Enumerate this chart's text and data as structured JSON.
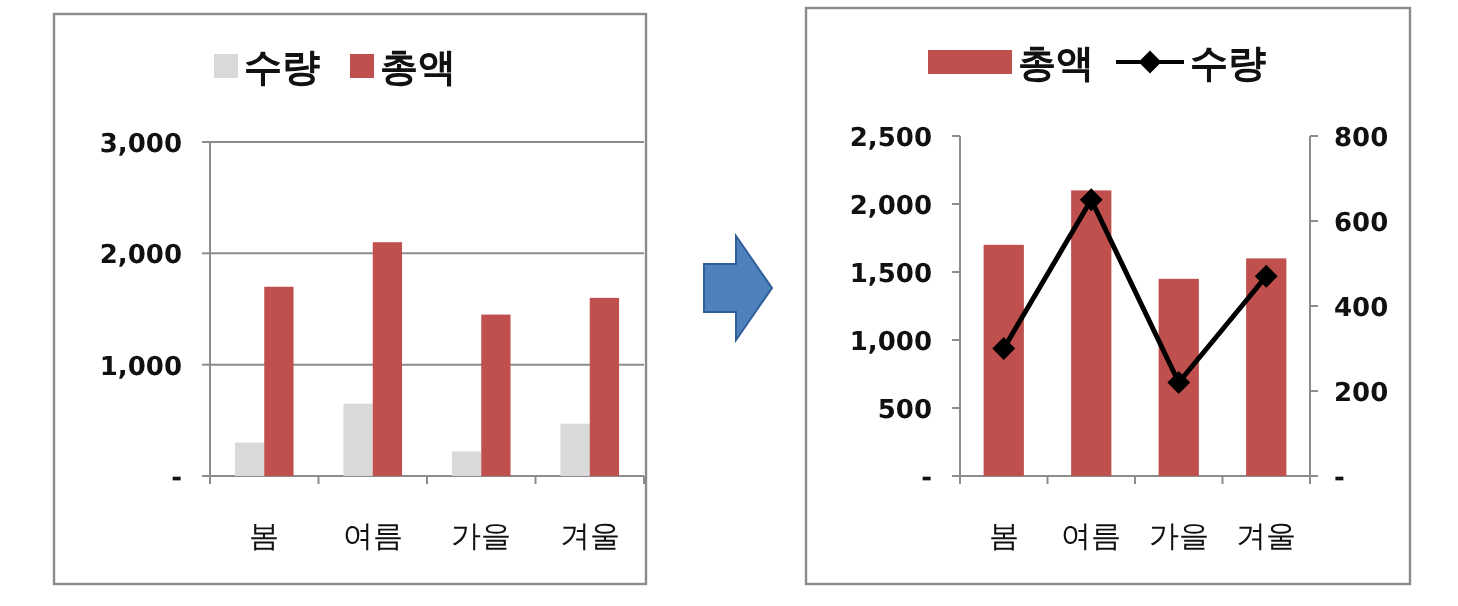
{
  "chart_data": [
    {
      "type": "bar",
      "categories": [
        "봄",
        "여름",
        "가을",
        "겨울"
      ],
      "series": [
        {
          "name": "수량",
          "color": "#d9d9d9",
          "values": [
            300,
            650,
            220,
            470
          ]
        },
        {
          "name": "총액",
          "color": "#c0504d",
          "values": [
            1700,
            2100,
            1450,
            1600
          ]
        }
      ],
      "ylim": [
        0,
        3000
      ],
      "yticks": [
        {
          "value": 0,
          "label": "-"
        },
        {
          "value": 1000,
          "label": "1,000"
        },
        {
          "value": 2000,
          "label": "2,000"
        },
        {
          "value": 3000,
          "label": "3,000"
        }
      ],
      "grid": "y",
      "legend": "top"
    },
    {
      "type": "bar",
      "categories": [
        "봄",
        "여름",
        "가을",
        "겨울"
      ],
      "series": [
        {
          "name": "총액",
          "color": "#c0504d",
          "values": [
            1700,
            2100,
            1450,
            1600
          ]
        },
        {
          "name": "수량",
          "type": "line",
          "axis": "y2",
          "color": "#000000",
          "marker": "diamond",
          "values": [
            300,
            650,
            220,
            470
          ]
        }
      ],
      "ylim": [
        0,
        2500
      ],
      "yticks": [
        {
          "value": 0,
          "label": "-"
        },
        {
          "value": 500,
          "label": "500"
        },
        {
          "value": 1000,
          "label": "1,000"
        },
        {
          "value": 1500,
          "label": "1,500"
        },
        {
          "value": 2000,
          "label": "2,000"
        },
        {
          "value": 2500,
          "label": "2,500"
        }
      ],
      "y2lim": [
        0,
        800
      ],
      "y2ticks": [
        {
          "value": 0,
          "label": "-"
        },
        {
          "value": 200,
          "label": "200"
        },
        {
          "value": 400,
          "label": "400"
        },
        {
          "value": 600,
          "label": "600"
        },
        {
          "value": 800,
          "label": "800"
        }
      ],
      "legend": "top"
    }
  ]
}
